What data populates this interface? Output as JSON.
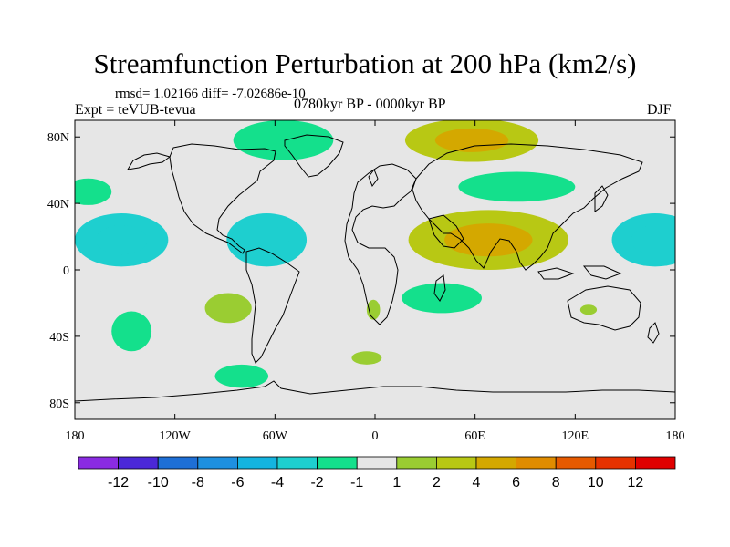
{
  "title": "Streamfunction Perturbation at 200 hPa (km2/s)",
  "stats": "rmsd= 1.02166 diff= -7.02686e-10",
  "experiment": "Expt = teVUB-tevua",
  "period": "0780kyr BP - 0000kyr BP",
  "season": "DJF",
  "axes": {
    "lon_ticks": [
      {
        "value": -180,
        "label": "180"
      },
      {
        "value": -120,
        "label": "120W"
      },
      {
        "value": -60,
        "label": "60W"
      },
      {
        "value": 0,
        "label": "0"
      },
      {
        "value": 60,
        "label": "60E"
      },
      {
        "value": 120,
        "label": "120E"
      },
      {
        "value": 180,
        "label": "180"
      }
    ],
    "lat_ticks": [
      {
        "value": 80,
        "label": "80N"
      },
      {
        "value": 40,
        "label": "40N"
      },
      {
        "value": 0,
        "label": "0"
      },
      {
        "value": -40,
        "label": "40S"
      },
      {
        "value": -80,
        "label": "80S"
      }
    ],
    "lon_range": [
      -180,
      180
    ],
    "lat_range": [
      -90,
      90
    ]
  },
  "colorbar": {
    "colors": [
      "#8a2be2",
      "#4b28d8",
      "#1e6fd6",
      "#1e90e0",
      "#14b4e0",
      "#1ecfcf",
      "#14e08c",
      "#e6e6e6",
      "#9acd32",
      "#b8c814",
      "#d4a800",
      "#e08c00",
      "#e65a00",
      "#e63200",
      "#e00000"
    ],
    "labels": [
      "-12",
      "-10",
      "-8",
      "-6",
      "-4",
      "-2",
      "-1",
      "1",
      "2",
      "4",
      "6",
      "8",
      "10",
      "12"
    ]
  },
  "chart_data": {
    "type": "heatmap",
    "title": "Streamfunction Perturbation at 200 hPa (km2/s)",
    "projection": "cylindrical-equidistant",
    "units": "km2/s",
    "levels": [
      -12,
      -10,
      -8,
      -6,
      -4,
      -2,
      -1,
      1,
      2,
      4,
      6,
      8,
      10,
      12
    ],
    "anomalies": [
      {
        "name": "north-atlantic-low",
        "lon": -55,
        "lat": 78,
        "rlon": 30,
        "rlat": 12,
        "value": -1.5
      },
      {
        "name": "siberian-high",
        "lon": 58,
        "lat": 78,
        "rlon": 40,
        "rlat": 13,
        "value": 2.5
      },
      {
        "name": "east-asia-low",
        "lon": 85,
        "lat": 50,
        "rlon": 35,
        "rlat": 9,
        "value": -1.5
      },
      {
        "name": "south-asia-high",
        "lon": 68,
        "lat": 18,
        "rlon": 48,
        "rlat": 18,
        "value": 3.0
      },
      {
        "name": "pacific-low-west",
        "lon": -152,
        "lat": 18,
        "rlon": 28,
        "rlat": 16,
        "value": -2.5
      },
      {
        "name": "pacific-low-east",
        "lon": 168,
        "lat": 18,
        "rlon": 26,
        "rlat": 16,
        "value": -2.5
      },
      {
        "name": "atlantic-low",
        "lon": -65,
        "lat": 18,
        "rlon": 24,
        "rlat": 16,
        "value": -2.5
      },
      {
        "name": "north-pacific-low",
        "lon": -172,
        "lat": 47,
        "rlon": 14,
        "rlat": 8,
        "value": -1.5
      },
      {
        "name": "south-america-high",
        "lon": -88,
        "lat": -23,
        "rlon": 14,
        "rlat": 9,
        "value": 1.5
      },
      {
        "name": "south-pacific-low",
        "lon": -146,
        "lat": -37,
        "rlon": 12,
        "rlat": 12,
        "value": -1.5
      },
      {
        "name": "indian-ocean-low",
        "lon": 40,
        "lat": -17,
        "rlon": 24,
        "rlat": 9,
        "value": -1.5
      },
      {
        "name": "south-atlantic-high",
        "lon": -1,
        "lat": -24,
        "rlon": 4,
        "rlat": 6,
        "value": 1.5
      },
      {
        "name": "southern-ocean-high",
        "lon": -5,
        "lat": -53,
        "rlon": 9,
        "rlat": 4,
        "value": 1.5
      },
      {
        "name": "southern-ocean-low",
        "lon": -80,
        "lat": -64,
        "rlon": 16,
        "rlat": 7,
        "value": -1.5
      },
      {
        "name": "australia-high",
        "lon": 128,
        "lat": -24,
        "rlon": 5,
        "rlat": 3,
        "value": 1.5
      }
    ]
  }
}
